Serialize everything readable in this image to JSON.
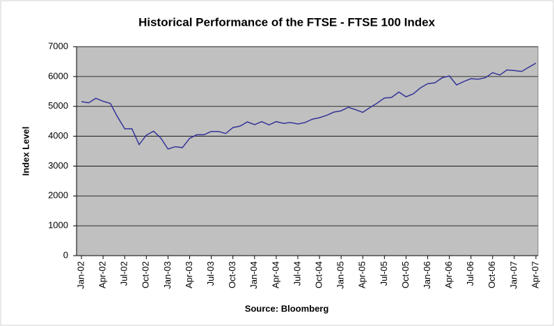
{
  "chart_data": {
    "type": "line",
    "title": "Historical Performance of the FTSE - FTSE 100 Index",
    "xlabel": "Source: Bloomberg",
    "ylabel": "Index Level",
    "categories": [
      "Jan-02",
      null,
      null,
      "Apr-02",
      null,
      null,
      "Jul-02",
      null,
      null,
      "Oct-02",
      null,
      null,
      "Jan-03",
      null,
      null,
      "Apr-03",
      null,
      null,
      "Jul-03",
      null,
      null,
      "Oct-03",
      null,
      null,
      "Jan-04",
      null,
      null,
      "Apr-04",
      null,
      null,
      "Jul-04",
      null,
      null,
      "Oct-04",
      null,
      null,
      "Jan-05",
      null,
      null,
      "Apr-05",
      null,
      null,
      "Jul-05",
      null,
      null,
      "Oct-05",
      null,
      null,
      "Jan-06",
      null,
      null,
      "Apr-06",
      null,
      null,
      "Jul-06",
      null,
      null,
      "Oct-06",
      null,
      null,
      "Jan-07",
      null,
      null,
      "Apr-07"
    ],
    "series": [
      {
        "name": "FTSE 100",
        "color": "#333399",
        "values": [
          5160,
          5120,
          5270,
          5170,
          5100,
          4650,
          4250,
          4250,
          3720,
          4040,
          4170,
          3940,
          3570,
          3650,
          3620,
          3930,
          4050,
          4050,
          4160,
          4160,
          4090,
          4290,
          4340,
          4480,
          4390,
          4490,
          4380,
          4490,
          4430,
          4460,
          4410,
          4460,
          4570,
          4620,
          4700,
          4810,
          4850,
          4970,
          4890,
          4800,
          4960,
          5110,
          5280,
          5300,
          5480,
          5320,
          5420,
          5620,
          5760,
          5790,
          5960,
          6020,
          5720,
          5830,
          5930,
          5910,
          5960,
          6130,
          6050,
          6220,
          6200,
          6170,
          6310,
          6450
        ]
      }
    ],
    "ylim": [
      0,
      7000
    ],
    "yticks": [
      0,
      1000,
      2000,
      3000,
      4000,
      5000,
      6000,
      7000
    ],
    "grid": true,
    "plot_background": "#c0c0c0"
  }
}
